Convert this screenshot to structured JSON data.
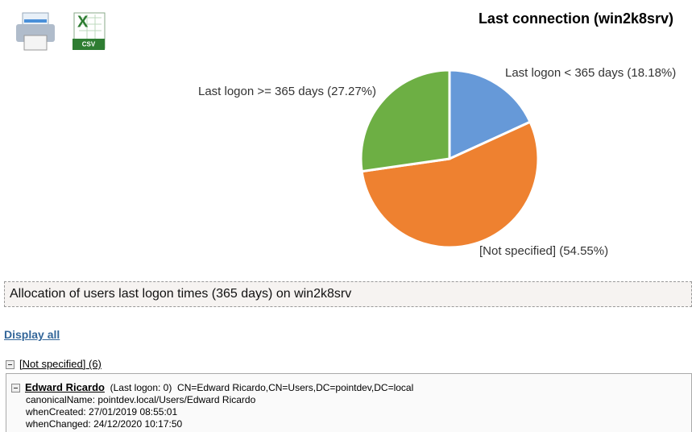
{
  "toolbar": {
    "csv_icon_label": "CSV"
  },
  "chart_data": {
    "type": "pie",
    "title": "Last connection (win2k8srv)",
    "categories": [
      "Last logon < 365 days",
      "[Not specified]",
      "Last logon >= 365 days"
    ],
    "values": [
      18.18,
      54.55,
      27.27
    ],
    "value_labels": [
      "(18.18%)",
      "(54.55%)",
      "(27.27%)"
    ],
    "colors": [
      "#6699d8",
      "#ee8130",
      "#6daf44"
    ]
  },
  "panel": {
    "title": "Allocation of users last logon times (365 days) on win2k8srv"
  },
  "display_all": "Display all",
  "group": {
    "label": "[Not specified] (6)",
    "entries": [
      {
        "name": "Edward Ricardo",
        "last_logon": "(Last logon: 0)",
        "dn": "CN=Edward Ricardo,CN=Users,DC=pointdev,DC=local",
        "lines": [
          "canonicalName: pointdev.local/Users/Edward Ricardo",
          "whenCreated: 27/01/2019 08:55:01",
          "whenChanged: 24/12/2020 10:17:50"
        ]
      }
    ]
  }
}
